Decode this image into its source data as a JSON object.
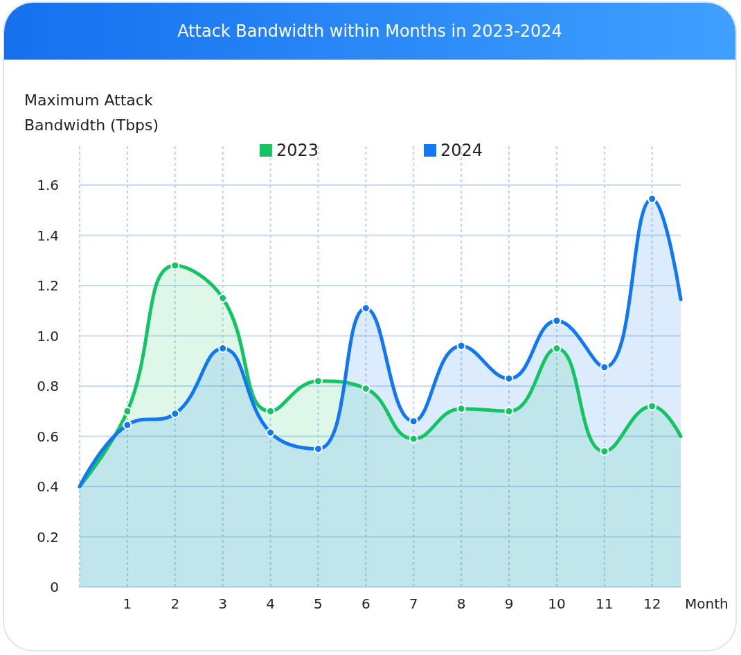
{
  "chart_data": {
    "type": "area",
    "title": "Attack Bandwidth within Months in 2023-2024",
    "xlabel": "Month",
    "ylabel": "Maximum Attack Bandwidth (Tbps)",
    "x": [
      0,
      1,
      2,
      3,
      4,
      5,
      6,
      7,
      8,
      9,
      10,
      11,
      12,
      12.6
    ],
    "series": [
      {
        "name": "2023",
        "color": "#12c462",
        "values": [
          0.4,
          0.7,
          1.28,
          1.15,
          0.7,
          0.82,
          0.79,
          0.59,
          0.71,
          0.7,
          0.95,
          0.54,
          0.72,
          0.6
        ]
      },
      {
        "name": "2024",
        "color": "#1177f2",
        "values": [
          0.4,
          0.645,
          0.69,
          0.95,
          0.615,
          0.55,
          1.11,
          0.66,
          0.96,
          0.83,
          1.06,
          0.875,
          1.545,
          1.145
        ]
      }
    ],
    "xlim": [
      0,
      12.6
    ],
    "xticks": [
      1,
      2,
      3,
      4,
      5,
      6,
      7,
      8,
      9,
      10,
      11,
      12
    ],
    "ylim": [
      0,
      1.6
    ],
    "yticks": [
      0,
      0.2,
      0.4,
      0.6,
      0.8,
      {
        "value": 1,
        "label": "1.0"
      },
      1.2,
      1.4,
      1.6
    ],
    "grid": true,
    "legend": "top",
    "marker": "circle",
    "line_style": "solid"
  }
}
